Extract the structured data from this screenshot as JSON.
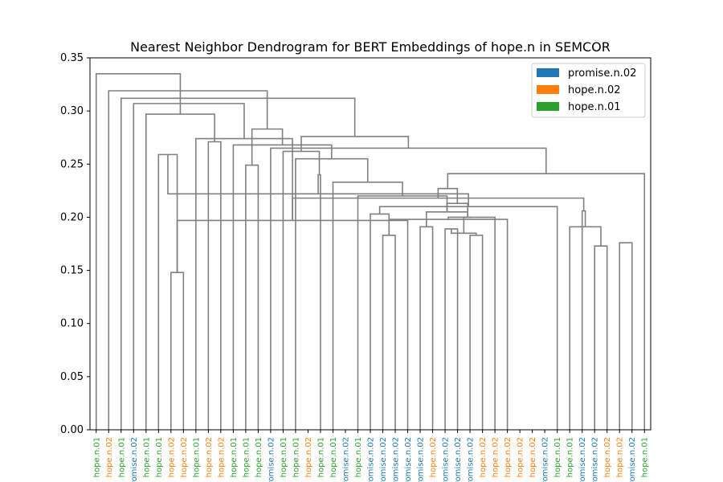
{
  "chart_data": {
    "type": "dendrogram",
    "title": "Nearest Neighbor Dendrogram for BERT Embeddings of hope.n in SEMCOR",
    "xlabel": "",
    "ylabel": "",
    "ylim": [
      0,
      0.35
    ],
    "yticks": [
      "0.00",
      "0.05",
      "0.10",
      "0.15",
      "0.20",
      "0.25",
      "0.30",
      "0.35"
    ],
    "grid": false,
    "legend_position": "top-right",
    "link_color": "#808080",
    "legend": [
      {
        "label": "promise.n.02",
        "color": "#1f77b4"
      },
      {
        "label": "hope.n.02",
        "color": "#ff7f0e"
      },
      {
        "label": "hope.n.01",
        "color": "#2ca02c"
      }
    ],
    "leaves": [
      {
        "label": "hope.n.01",
        "class": 2
      },
      {
        "label": "hope.n.02",
        "class": 1
      },
      {
        "label": "hope.n.01",
        "class": 2
      },
      {
        "label": "promise.n.02",
        "class": 0
      },
      {
        "label": "hope.n.01",
        "class": 2
      },
      {
        "label": "hope.n.01",
        "class": 2
      },
      {
        "label": "hope.n.02",
        "class": 1
      },
      {
        "label": "hope.n.02",
        "class": 1
      },
      {
        "label": "hope.n.01",
        "class": 2
      },
      {
        "label": "hope.n.02",
        "class": 1
      },
      {
        "label": "hope.n.02",
        "class": 1
      },
      {
        "label": "hope.n.01",
        "class": 2
      },
      {
        "label": "hope.n.01",
        "class": 2
      },
      {
        "label": "hope.n.01",
        "class": 2
      },
      {
        "label": "promise.n.02",
        "class": 0
      },
      {
        "label": "hope.n.01",
        "class": 2
      },
      {
        "label": "hope.n.01",
        "class": 2
      },
      {
        "label": "hope.n.02",
        "class": 1
      },
      {
        "label": "hope.n.01",
        "class": 2
      },
      {
        "label": "hope.n.01",
        "class": 2
      },
      {
        "label": "promise.n.02",
        "class": 0
      },
      {
        "label": "hope.n.01",
        "class": 2
      },
      {
        "label": "promise.n.02",
        "class": 0
      },
      {
        "label": "promise.n.02",
        "class": 0
      },
      {
        "label": "promise.n.02",
        "class": 0
      },
      {
        "label": "promise.n.02",
        "class": 0
      },
      {
        "label": "promise.n.02",
        "class": 0
      },
      {
        "label": "hope.n.02",
        "class": 1
      },
      {
        "label": "promise.n.02",
        "class": 0
      },
      {
        "label": "promise.n.02",
        "class": 0
      },
      {
        "label": "promise.n.02",
        "class": 0
      },
      {
        "label": "hope.n.02",
        "class": 1
      },
      {
        "label": "hope.n.02",
        "class": 1
      },
      {
        "label": "hope.n.02",
        "class": 1
      },
      {
        "label": "hope.n.02",
        "class": 1
      },
      {
        "label": "hope.n.02",
        "class": 1
      },
      {
        "label": "promise.n.02",
        "class": 0
      },
      {
        "label": "hope.n.01",
        "class": 2
      },
      {
        "label": "hope.n.01",
        "class": 2
      },
      {
        "label": "promise.n.02",
        "class": 0
      },
      {
        "label": "promise.n.02",
        "class": 0
      },
      {
        "label": "hope.n.02",
        "class": 1
      },
      {
        "label": "hope.n.02",
        "class": 1
      },
      {
        "label": "promise.n.02",
        "class": 0
      },
      {
        "label": "hope.n.01",
        "class": 2
      }
    ],
    "merges": [
      [
        6,
        7,
        0.148
      ],
      [
        23,
        24,
        0.183
      ],
      [
        28,
        29,
        0.189
      ],
      [
        30,
        31,
        0.183
      ],
      [
        40,
        41,
        0.173
      ],
      [
        42,
        43,
        0.176
      ],
      [
        47,
        48,
        0.185
      ],
      [
        38,
        49,
        0.191
      ],
      [
        26,
        27,
        0.191
      ],
      [
        25,
        45,
        0.197
      ],
      [
        33,
        46,
        0.198
      ],
      [
        32,
        55,
        0.2
      ],
      [
        51,
        56,
        0.2
      ],
      [
        22,
        46,
        0.203
      ],
      [
        53,
        57,
        0.205
      ],
      [
        39,
        52,
        0.206
      ],
      [
        5,
        45,
        0.259
      ],
      [
        58,
        37,
        0.21
      ],
      [
        59,
        57,
        0.213
      ],
      [
        60,
        54,
        0.218
      ],
      [
        21,
        59,
        0.22
      ],
      [
        62,
        61,
        0.222
      ],
      [
        63,
        64,
        0.227
      ],
      [
        19,
        65,
        0.233
      ],
      [
        18,
        66,
        0.24
      ],
      [
        67,
        44,
        0.241
      ],
      [
        16,
        68,
        0.255
      ],
      [
        15,
        69,
        0.262
      ],
      [
        14,
        70,
        0.265
      ],
      [
        12,
        13,
        0.249
      ],
      [
        11,
        71,
        0.268
      ],
      [
        9,
        10,
        0.271
      ],
      [
        54,
        8,
        0.274
      ],
      [
        72,
        73,
        0.276
      ],
      [
        74,
        75,
        0.283
      ],
      [
        4,
        76,
        0.297
      ],
      [
        3,
        77,
        0.307
      ],
      [
        2,
        78,
        0.312
      ],
      [
        1,
        79,
        0.319
      ],
      [
        0,
        80,
        0.335
      ]
    ]
  }
}
